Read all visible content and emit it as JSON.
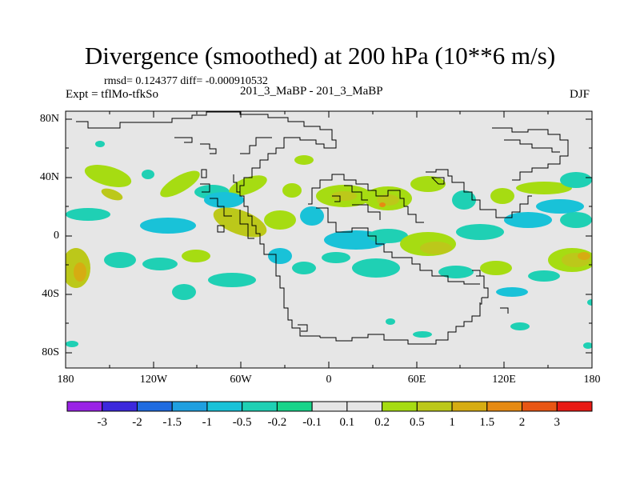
{
  "title": "Divergence (smoothed) at 200 hPa (10**6 m/s)",
  "stats": "rmsd= 0.124377 diff= -0.000910532",
  "expt": "Expt = tflMo-tfkSo",
  "subtitle": "201_3_MaBP - 201_3_MaBP",
  "season": "DJF",
  "axes": {
    "lat_ticks": [
      "80N",
      "40N",
      "0",
      "40S",
      "80S"
    ],
    "lon_ticks": [
      "180",
      "120W",
      "60W",
      "0",
      "60E",
      "120E",
      "180"
    ]
  },
  "colorbar": {
    "labels": [
      "-3",
      "-2",
      "-1.5",
      "-1",
      "-0.5",
      "-0.2",
      "-0.1",
      "0.1",
      "0.2",
      "0.5",
      "1",
      "1.5",
      "2",
      "3"
    ],
    "colors": [
      "#9a22e6",
      "#3c28dc",
      "#1f6be0",
      "#1f9fe0",
      "#19c2d8",
      "#1fd0b4",
      "#18d48a",
      "#e6e6e6",
      "#a6dc12",
      "#bcc81a",
      "#d6ac12",
      "#e68a12",
      "#e85614",
      "#e81a14"
    ]
  },
  "background_color": "#e6e6e6"
}
